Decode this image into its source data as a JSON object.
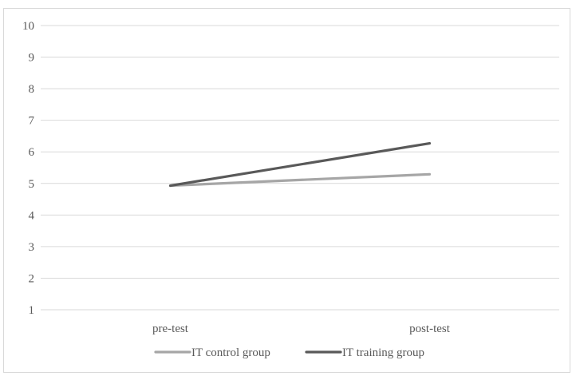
{
  "chart_data": {
    "type": "line",
    "title": "",
    "xlabel": "",
    "ylabel": "",
    "categories": [
      "pre-test",
      "post-test"
    ],
    "ylim": [
      1,
      10
    ],
    "yticks": [
      1,
      2,
      3,
      4,
      5,
      6,
      7,
      8,
      9,
      10
    ],
    "grid": true,
    "legend_position": "bottom",
    "series": [
      {
        "name": "IT control group",
        "values": [
          4.93,
          5.29
        ],
        "color": "#a6a6a6"
      },
      {
        "name": "IT training group",
        "values": [
          4.93,
          6.27
        ],
        "color": "#595959"
      }
    ]
  }
}
